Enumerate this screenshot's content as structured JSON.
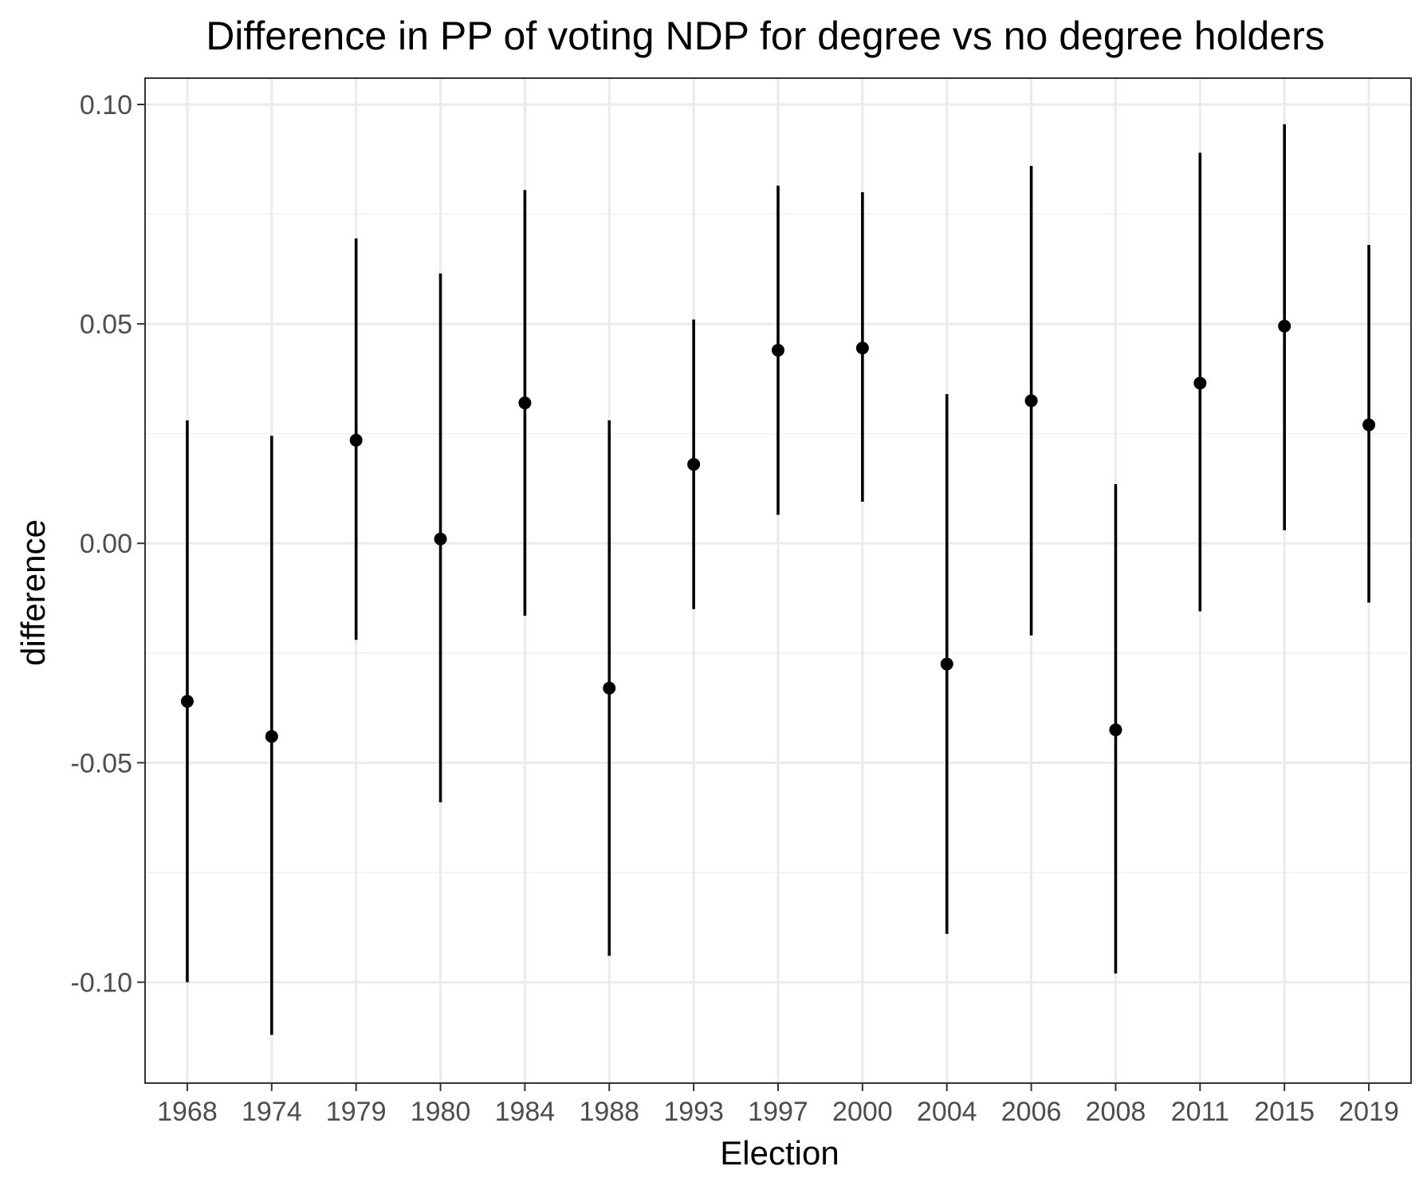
{
  "chart_data": {
    "type": "scatter",
    "subtype": "pointrange",
    "title": "Difference in PP of voting NDP for degree vs no degree holders",
    "xlabel": "Election",
    "ylabel": "difference",
    "ylim": [
      -0.123,
      0.106
    ],
    "yticks": [
      -0.1,
      -0.05,
      0.0,
      0.05,
      0.1
    ],
    "ytick_labels": [
      "-0.10",
      "-0.05",
      "0.00",
      "0.05",
      "0.10"
    ],
    "grid": true,
    "theme": "bw",
    "point_color": "#000000",
    "categories": [
      "1968",
      "1974",
      "1979",
      "1980",
      "1984",
      "1988",
      "1993",
      "1997",
      "2000",
      "2004",
      "2006",
      "2008",
      "2011",
      "2015",
      "2019"
    ],
    "series": [
      {
        "values": [
          -0.036,
          -0.044,
          0.0235,
          0.001,
          0.032,
          -0.033,
          0.018,
          0.044,
          0.0445,
          -0.0275,
          0.0325,
          -0.0425,
          0.0365,
          0.0495,
          0.027
        ],
        "lower": [
          -0.1,
          -0.112,
          -0.022,
          -0.059,
          -0.0165,
          -0.094,
          -0.015,
          0.0065,
          0.0095,
          -0.089,
          -0.021,
          -0.098,
          -0.0155,
          0.003,
          -0.0135
        ],
        "upper": [
          0.028,
          0.0245,
          0.0695,
          0.0615,
          0.0805,
          0.028,
          0.051,
          0.0815,
          0.08,
          0.034,
          0.086,
          0.0135,
          0.089,
          0.0955,
          0.068
        ]
      }
    ]
  }
}
